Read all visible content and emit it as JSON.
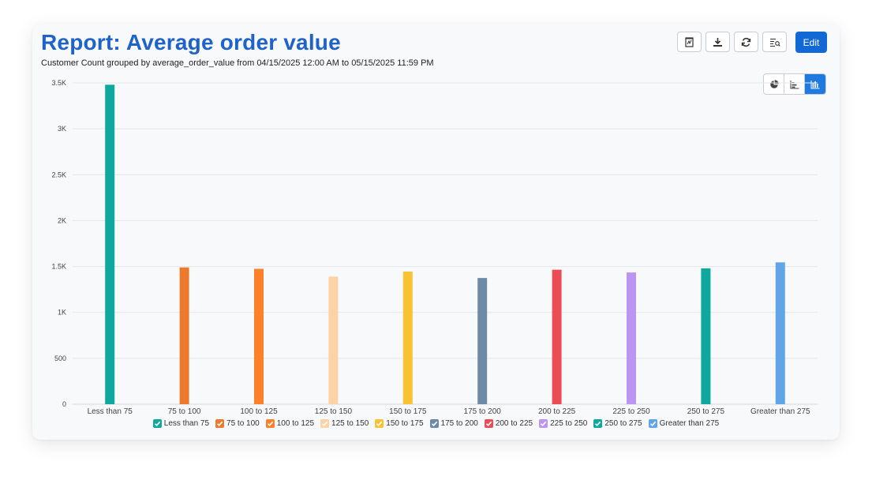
{
  "report": {
    "title": "Report: Average order value",
    "subtitle": "Customer Count grouped by average_order_value from 04/15/2025 12:00 AM to 05/15/2025 11:59 PM",
    "edit_label": "Edit"
  },
  "toolbar_icons": [
    "pdf-icon",
    "download-icon",
    "refresh-icon",
    "filter-list-icon"
  ],
  "view_toggle": {
    "active": "column-chart",
    "options": [
      "pie-chart",
      "bar-chart",
      "column-chart"
    ]
  },
  "chart_data": {
    "type": "bar",
    "categories": [
      "Less than 75",
      "75 to 100",
      "100 to 125",
      "125 to 150",
      "150 to 175",
      "175 to 200",
      "200 to 225",
      "225 to 250",
      "250 to 275",
      "Greater than 275"
    ],
    "values": [
      3480,
      1490,
      1475,
      1390,
      1445,
      1375,
      1465,
      1435,
      1480,
      1545
    ],
    "colors": [
      "#0fa89e",
      "#ec7a2c",
      "#fd8128",
      "#fdd2a6",
      "#f8c232",
      "#6d8aa6",
      "#ec4d55",
      "#bc94f2",
      "#0fa89e",
      "#5fa6e8"
    ],
    "ylim": [
      0,
      3500
    ],
    "yticks": [
      0,
      500,
      1000,
      1500,
      2000,
      2500,
      3000,
      3500
    ],
    "ytick_labels": [
      "0",
      "500",
      "1K",
      "1.5K",
      "2K",
      "2.5K",
      "3K",
      "3.5K"
    ],
    "grid": true,
    "legend": "bottom"
  }
}
